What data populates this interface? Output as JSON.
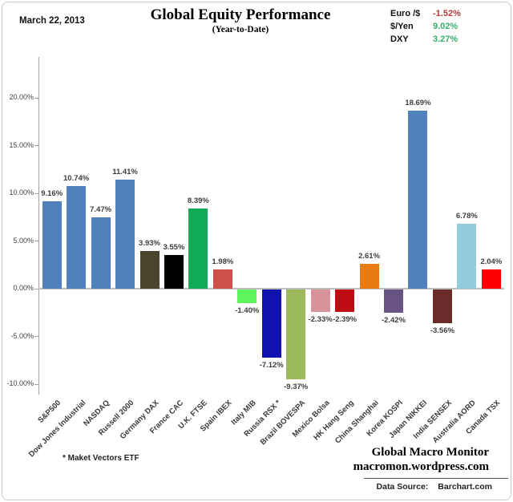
{
  "header": {
    "date": "March 22, 2013",
    "title": "Global Equity Performance",
    "subtitle": "(Year-to-Date)",
    "currencies": [
      {
        "label": "Euro /$",
        "value": "-1.52%",
        "color": "#b43a3a"
      },
      {
        "label": "$/Yen",
        "value": "9.02%",
        "color": "#33b06a"
      },
      {
        "label": "DXY",
        "value": "3.27%",
        "color": "#33b06a"
      }
    ]
  },
  "chart_data": {
    "type": "bar",
    "title": "Global Equity Performance",
    "subtitle": "(Year-to-Date)",
    "xlabel": "",
    "ylabel": "",
    "ylim": [
      -10,
      22
    ],
    "grid": false,
    "legend": false,
    "yticks": [
      20,
      15,
      10,
      5,
      0,
      -5,
      -10
    ],
    "ytick_labels": [
      "20.00%",
      "15.00%",
      "10.00%",
      "5.00%",
      "0.00%",
      "-5.00%",
      "-10.00%"
    ],
    "categories": [
      "S&P500",
      "Dow Jones Industrial",
      "NASDAQ",
      "Russell 2000",
      "Germany DAX",
      "France CAC",
      "U.K. FTSE",
      "Spain IBEX",
      "Italy MIB",
      "Russia RSX *",
      "Brazil BOVESPA",
      "Mexico Bolsa",
      "HK Hang Seng",
      "China Shanghai",
      "Korea KOSPI",
      "Japan NIKKEI",
      "India SENSEX",
      "Australia AORD",
      "Canada TSX"
    ],
    "values": [
      9.16,
      10.74,
      7.47,
      11.41,
      3.93,
      3.55,
      8.39,
      1.98,
      -1.4,
      -7.12,
      -9.37,
      -2.33,
      -2.39,
      2.61,
      -2.42,
      18.69,
      -3.56,
      6.78,
      2.04
    ],
    "value_labels": [
      "9.16%",
      "10.74%",
      "7.47%",
      "11.41%",
      "3.93%",
      "3.55%",
      "8.39%",
      "1.98%",
      "-1.40%",
      "-7.12%",
      "-9.37%",
      "-2.33%",
      "-2.39%",
      "2.61%",
      "-2.42%",
      "18.69%",
      "-3.56%",
      "6.78%",
      "2.04%"
    ],
    "colors": [
      "#4f81bd",
      "#4f81bd",
      "#4f81bd",
      "#4f81bd",
      "#4a442e",
      "#000000",
      "#10ab54",
      "#cf4f4c",
      "#5cf55c",
      "#1111b0",
      "#9cba5d",
      "#d8949a",
      "#c00a14",
      "#e87a12",
      "#695386",
      "#4f81bd",
      "#6c2b2b",
      "#93ccdd",
      "#fe0000"
    ]
  },
  "footer": {
    "footnote": "* Maket Vectors ETF",
    "brand_line1": "Global Macro Monitor",
    "brand_line2": "macromon.wordpress.com",
    "datasource_label": "Data Source:",
    "datasource_value": "Barchart.com"
  }
}
